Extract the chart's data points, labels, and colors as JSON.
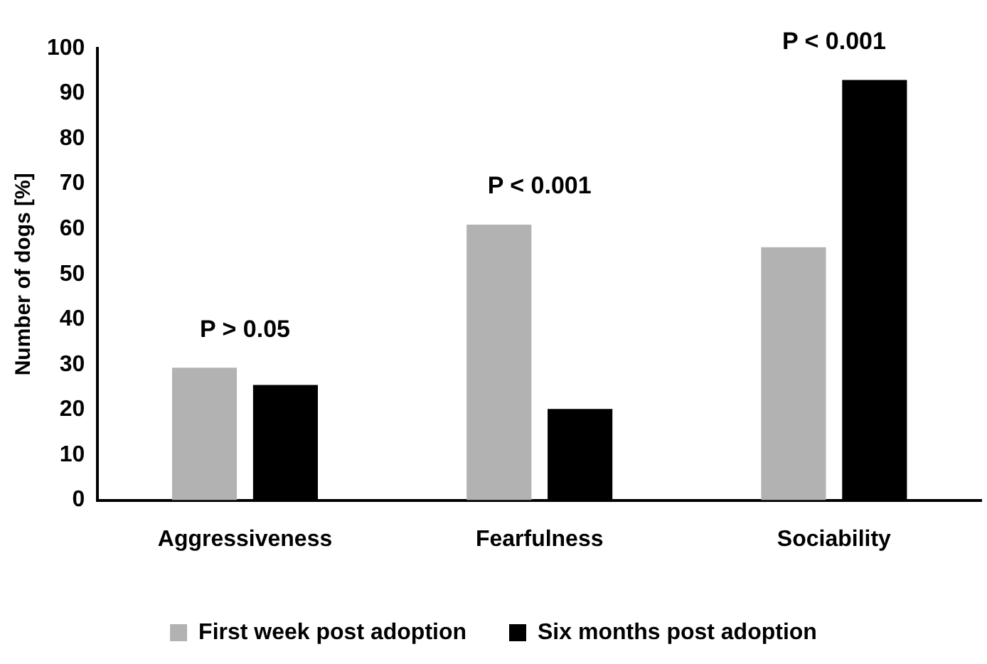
{
  "chart_data": {
    "type": "bar",
    "ylabel": "Number of dogs [%]",
    "categories": [
      "Aggressiveness",
      "Fearfulness",
      "Sociability"
    ],
    "series": [
      {
        "name": "First week post adoption",
        "color": "#b2b2b2",
        "values": [
          29.3,
          61,
          56
        ]
      },
      {
        "name": "Six months post adoption",
        "color": "#000000",
        "values": [
          25.5,
          20.2,
          93
        ]
      }
    ],
    "ylim": [
      0,
      100
    ],
    "yticks": [
      0,
      10,
      20,
      30,
      40,
      50,
      60,
      70,
      80,
      90,
      100
    ],
    "grid": false,
    "legend": "bottom",
    "annotations": [
      "P > 0.05",
      "P < 0.001",
      "P < 0.001"
    ]
  }
}
